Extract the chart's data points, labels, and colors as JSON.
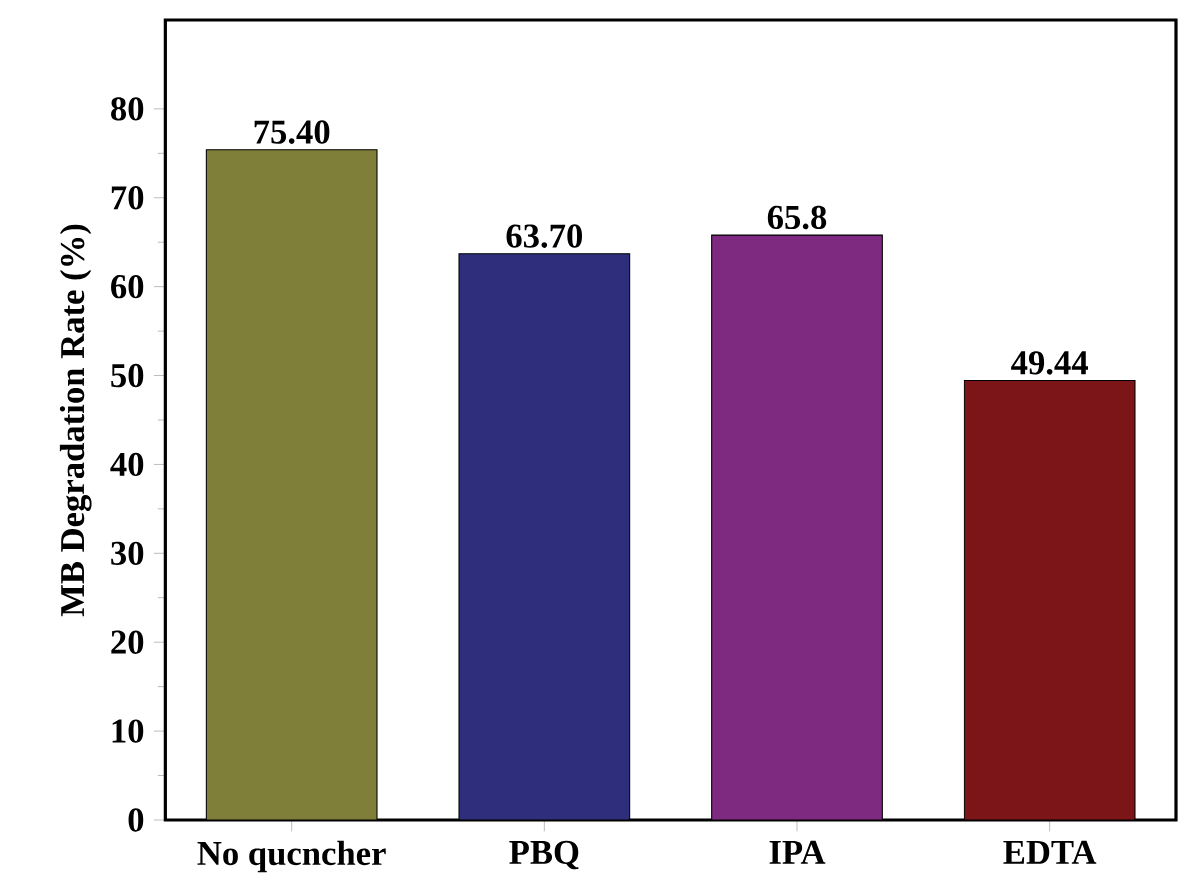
{
  "chart_data": {
    "type": "bar",
    "ylabel": "MB Degradation Rate (%)",
    "categories": [
      "No qucncher",
      "PBQ",
      "IPA",
      "EDTA"
    ],
    "values": [
      75.4,
      63.7,
      65.8,
      49.44
    ],
    "value_labels": [
      "75.40",
      "63.70",
      "65.8",
      "49.44"
    ],
    "colors": [
      "#7f7f3a",
      "#2e2e7c",
      "#7e2a80",
      "#7c1518"
    ],
    "ylim": [
      0,
      90
    ],
    "yticks": [
      0,
      10,
      20,
      30,
      40,
      50,
      60,
      70,
      80
    ],
    "grid": false
  }
}
